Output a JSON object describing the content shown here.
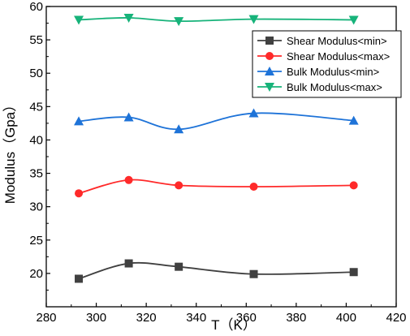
{
  "chart_data": {
    "type": "line",
    "title": "",
    "xlabel": "T（K）",
    "ylabel": "Modulus（Gpa）",
    "xlim": [
      280,
      420
    ],
    "ylim": [
      15,
      60
    ],
    "x_ticks": [
      280,
      300,
      320,
      340,
      360,
      380,
      400,
      420
    ],
    "y_ticks": [
      20,
      25,
      30,
      35,
      40,
      45,
      50,
      55,
      60
    ],
    "x_tick_labels": [
      "280",
      "300",
      "320",
      "340",
      "360",
      "380",
      "400",
      "420"
    ],
    "y_tick_labels": [
      "20",
      "25",
      "30",
      "35",
      "40",
      "45",
      "50",
      "55",
      "60"
    ],
    "grid": false,
    "legend_position": "top-right",
    "x": [
      293,
      313,
      333,
      363,
      403
    ],
    "series": [
      {
        "name": "Shear Modulus<min>",
        "values": [
          19.2,
          21.5,
          21.0,
          19.9,
          20.2
        ],
        "color": "#404040",
        "marker": "square"
      },
      {
        "name": "Shear Modulus<max>",
        "values": [
          32.0,
          34.0,
          33.2,
          33.0,
          33.2
        ],
        "color": "#ff2a2a",
        "marker": "circle"
      },
      {
        "name": "Bulk Modulus<min>",
        "values": [
          42.8,
          43.4,
          41.6,
          44.0,
          42.9
        ],
        "color": "#1e73d8",
        "marker": "triangle-up"
      },
      {
        "name": "Bulk Modulus<max>",
        "values": [
          58.0,
          58.3,
          57.8,
          58.1,
          58.0
        ],
        "color": "#17b37a",
        "marker": "triangle-down"
      }
    ]
  }
}
